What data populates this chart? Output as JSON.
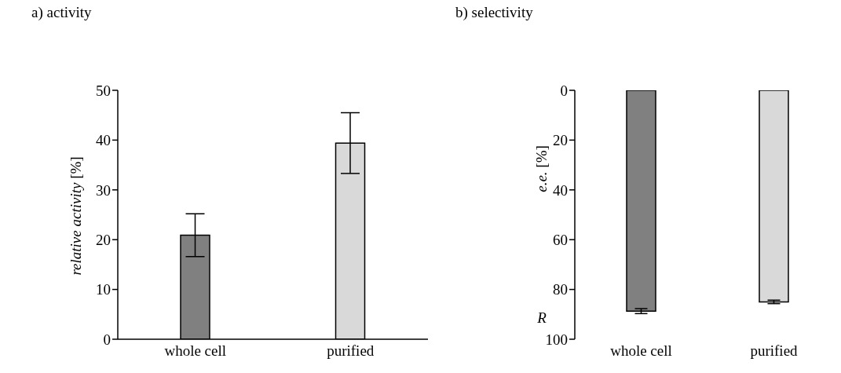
{
  "chart_data": [
    {
      "type": "bar",
      "title": "a) activity",
      "ylabel": "relative activity [%]",
      "categories": [
        "whole cell",
        "purified"
      ],
      "values": [
        20.9,
        39.4
      ],
      "colors": [
        "#808080",
        "#d9d9d9"
      ],
      "errors": [
        4.3,
        6.1
      ],
      "ylim": [
        0,
        50
      ],
      "yticks": [
        0,
        10,
        20,
        30,
        40,
        50
      ]
    },
    {
      "type": "bar",
      "title": "b) selectivity",
      "ylabel": "e.e. [%]",
      "annotations": [
        "R"
      ],
      "categories": [
        "whole cell",
        "purified"
      ],
      "values": [
        88.7,
        85.0
      ],
      "colors": [
        "#808080",
        "#d9d9d9"
      ],
      "errors": [
        1.0,
        0.7
      ],
      "ylim": [
        100,
        0
      ],
      "yticks": [
        0,
        20,
        40,
        60,
        80,
        100
      ]
    }
  ]
}
